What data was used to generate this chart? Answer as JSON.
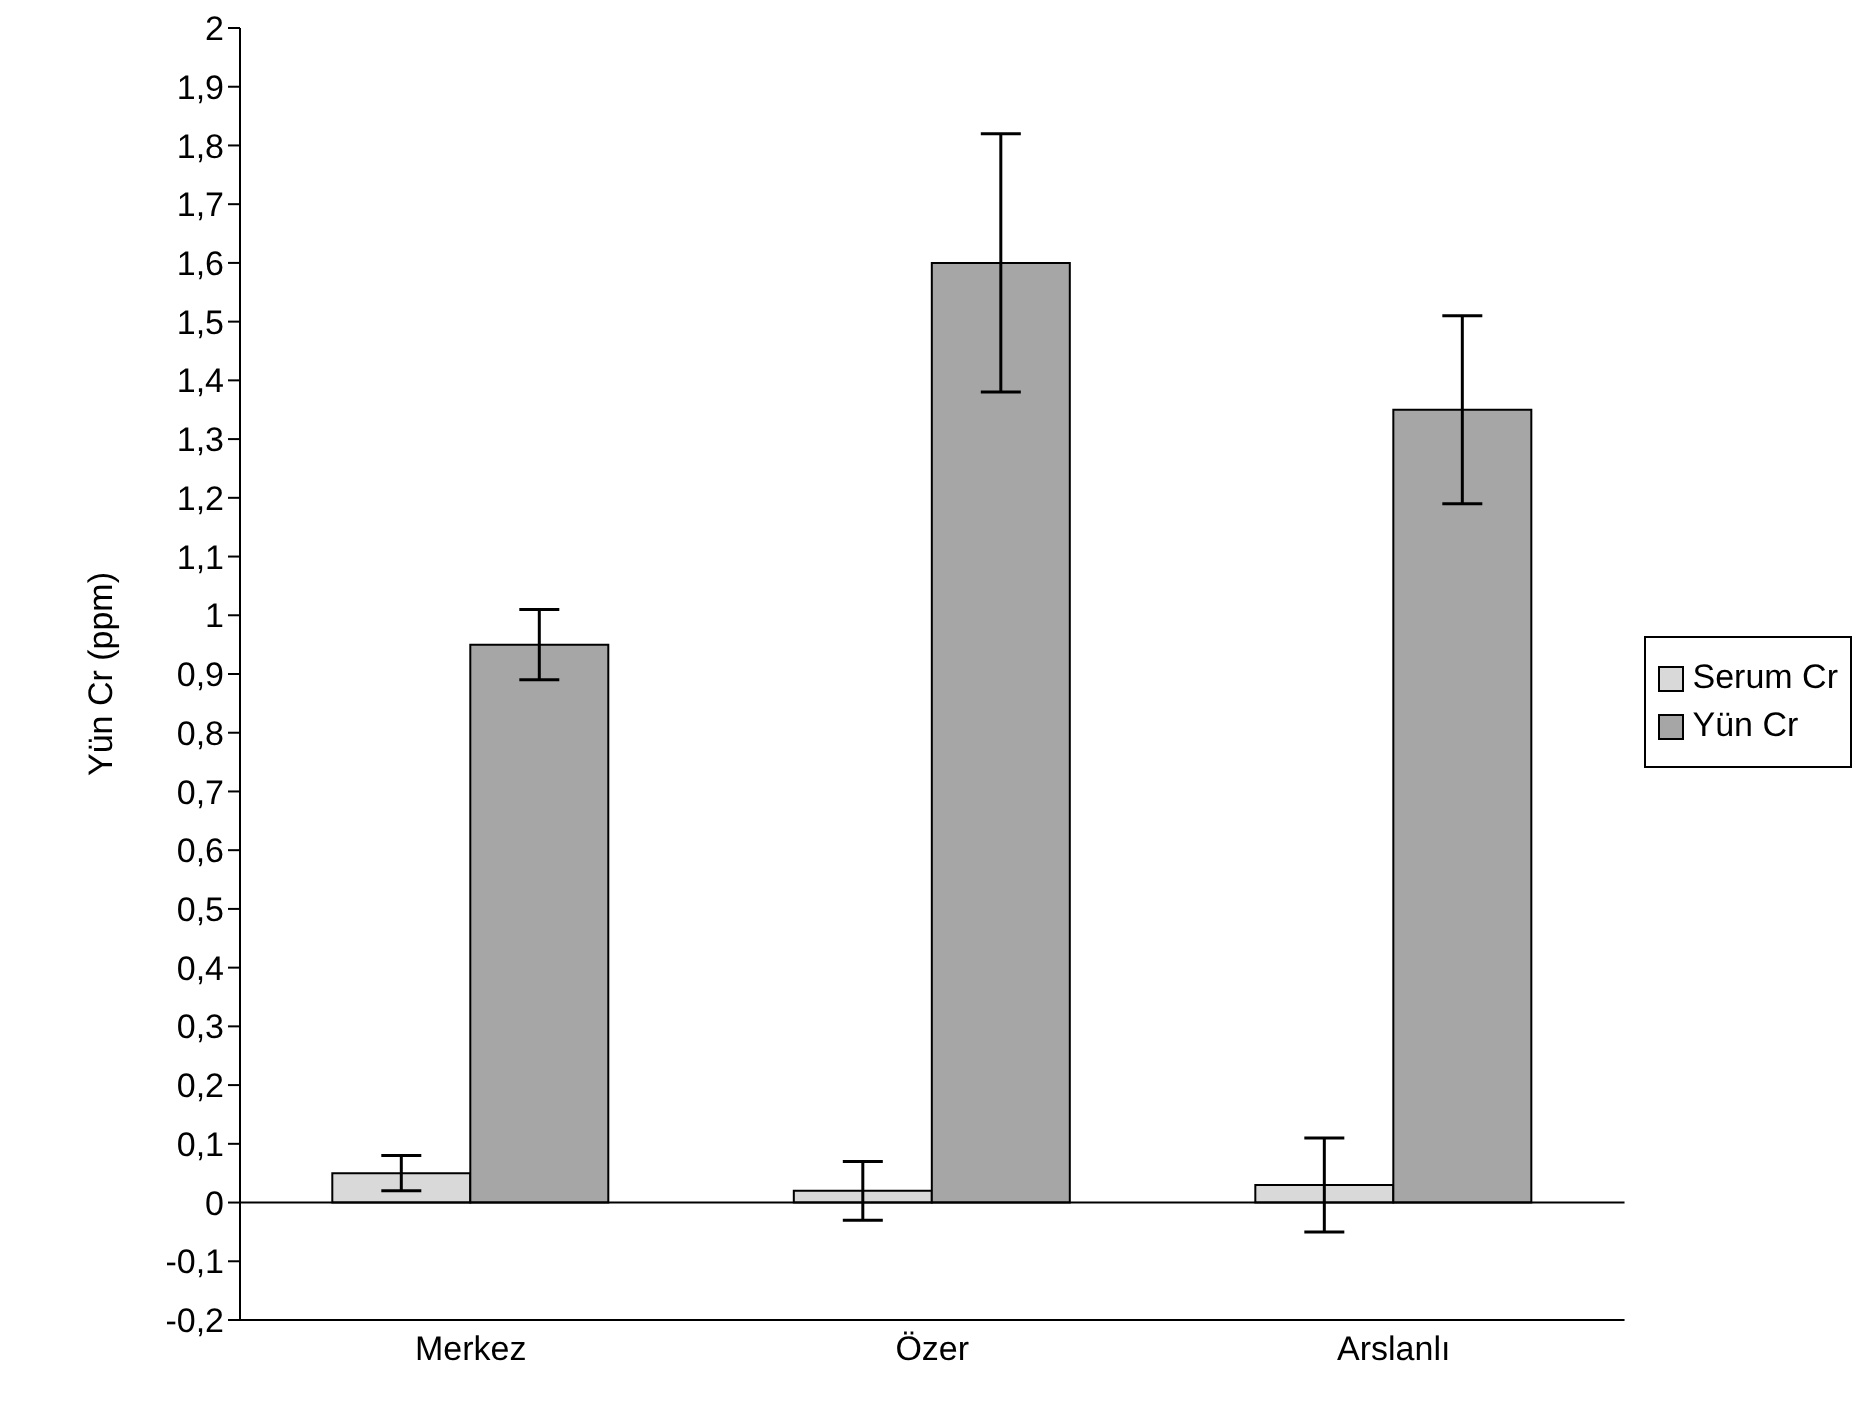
{
  "chart_data": {
    "type": "bar",
    "ylabel": "Yün Cr (ppm)",
    "categories": [
      "Merkez",
      "Özer",
      "Arslanlı"
    ],
    "series": [
      {
        "name": "Serum Cr",
        "color": "#d9d9d9",
        "values": [
          0.05,
          0.02,
          0.03
        ],
        "errors": [
          0.03,
          0.05,
          0.08
        ]
      },
      {
        "name": "Yün Cr",
        "color": "#a6a6a6",
        "values": [
          0.95,
          1.6,
          1.35
        ],
        "errors": [
          0.06,
          0.22,
          0.16
        ]
      }
    ],
    "ylim": [
      -0.2,
      2
    ],
    "yticks": [
      {
        "value": -0.2,
        "label": "-0,2"
      },
      {
        "value": -0.1,
        "label": "-0,1"
      },
      0,
      {
        "value": 0.1,
        "label": "0,1"
      },
      {
        "value": 0.2,
        "label": "0,2"
      },
      {
        "value": 0.3,
        "label": "0,3"
      },
      {
        "value": 0.4,
        "label": "0,4"
      },
      {
        "value": 0.5,
        "label": "0,5"
      },
      {
        "value": 0.6,
        "label": "0,6"
      },
      {
        "value": 0.7,
        "label": "0,7"
      },
      {
        "value": 0.8,
        "label": "0,8"
      },
      {
        "value": 0.9,
        "label": "0,9"
      },
      1,
      {
        "value": 1.1,
        "label": "1,1"
      },
      {
        "value": 1.2,
        "label": "1,2"
      },
      {
        "value": 1.3,
        "label": "1,3"
      },
      {
        "value": 1.4,
        "label": "1,4"
      },
      {
        "value": 1.5,
        "label": "1,5"
      },
      {
        "value": 1.6,
        "label": "1,6"
      },
      {
        "value": 1.7,
        "label": "1,7"
      },
      {
        "value": 1.8,
        "label": "1,8"
      },
      {
        "value": 1.9,
        "label": "1,9"
      },
      2
    ],
    "legend": "right"
  }
}
